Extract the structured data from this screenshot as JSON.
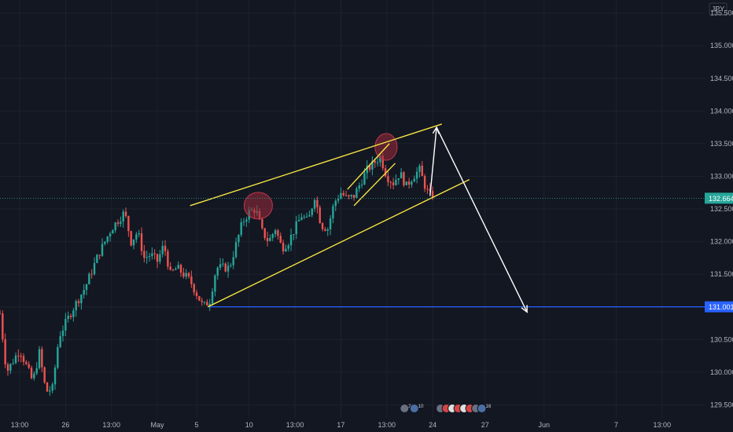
{
  "chart_data": {
    "type": "candlestick",
    "currency": "JPY",
    "ylim": [
      129.3,
      135.7
    ],
    "y_ticks": [
      "135.500",
      "135.000",
      "134.500",
      "134.000",
      "133.500",
      "133.000",
      "132.500",
      "132.000",
      "131.500",
      "131.000",
      "130.500",
      "130.000",
      "129.500"
    ],
    "x_ticks": [
      {
        "label": "13:00",
        "t": 3
      },
      {
        "label": "26",
        "t": 10
      },
      {
        "label": "13:00",
        "t": 17
      },
      {
        "label": "May",
        "t": 24
      },
      {
        "label": "5",
        "t": 30
      },
      {
        "label": "10",
        "t": 38
      },
      {
        "label": "13:00",
        "t": 45
      },
      {
        "label": "17",
        "t": 52
      },
      {
        "label": "13:00",
        "t": 59
      },
      {
        "label": "24",
        "t": 66
      },
      {
        "label": "27",
        "t": 74
      },
      {
        "label": "Jun",
        "t": 83
      },
      {
        "label": "7",
        "t": 94
      },
      {
        "label": "13:00",
        "t": 101
      }
    ],
    "t_range": [
      0,
      107.5
    ],
    "anchors": [
      [
        0,
        130.9
      ],
      [
        1,
        130.0
      ],
      [
        3,
        130.35
      ],
      [
        5,
        129.85
      ],
      [
        6,
        130.3
      ],
      [
        7,
        129.7
      ],
      [
        8,
        129.75
      ],
      [
        9,
        130.55
      ],
      [
        11,
        130.95
      ],
      [
        13,
        131.3
      ],
      [
        15,
        131.8
      ],
      [
        17,
        132.2
      ],
      [
        19,
        132.45
      ],
      [
        20,
        132.0
      ],
      [
        21,
        132.15
      ],
      [
        22,
        131.75
      ],
      [
        23,
        131.8
      ],
      [
        24,
        131.7
      ],
      [
        25,
        131.95
      ],
      [
        26,
        131.5
      ],
      [
        27,
        131.6
      ],
      [
        29,
        131.4
      ],
      [
        30,
        131.2
      ],
      [
        31,
        131.0
      ],
      [
        32,
        131.1
      ],
      [
        33,
        131.6
      ],
      [
        35,
        131.6
      ],
      [
        36,
        131.95
      ],
      [
        37,
        132.3
      ],
      [
        38,
        132.45
      ],
      [
        39,
        132.5
      ],
      [
        40,
        132.15
      ],
      [
        41,
        132.0
      ],
      [
        42,
        132.2
      ],
      [
        43,
        131.9
      ],
      [
        44,
        132.0
      ],
      [
        45,
        132.2
      ],
      [
        46,
        132.4
      ],
      [
        47,
        132.3
      ],
      [
        48,
        132.7
      ],
      [
        49,
        132.25
      ],
      [
        50,
        132.2
      ],
      [
        51,
        132.6
      ],
      [
        52,
        132.75
      ],
      [
        53,
        132.65
      ],
      [
        54,
        132.7
      ],
      [
        55,
        132.9
      ],
      [
        56,
        133.1
      ],
      [
        57,
        133.2
      ],
      [
        58,
        133.3
      ],
      [
        59,
        133.0
      ],
      [
        60,
        132.9
      ],
      [
        61,
        133.05
      ],
      [
        62,
        132.85
      ],
      [
        63,
        133.0
      ],
      [
        64,
        133.1
      ],
      [
        65,
        132.8
      ],
      [
        66,
        132.65
      ]
    ],
    "last_price": "132.664",
    "last_price_value": 132.664,
    "target_level": "131.001",
    "target_level_value": 131.001,
    "annotations": {
      "upper_channel": {
        "from": [
          29,
          132.55
        ],
        "to": [
          67.4,
          133.8
        ]
      },
      "lower_channel": {
        "from": [
          31.7,
          131.0
        ],
        "to": [
          71.6,
          132.95
        ]
      },
      "small_upper": {
        "from": [
          53,
          132.8
        ],
        "to": [
          59.4,
          133.5
        ]
      },
      "small_lower": {
        "from": [
          54,
          132.55
        ],
        "to": [
          60.3,
          133.2
        ]
      },
      "target_line": {
        "from": [
          31.7,
          131.001
        ],
        "to": [
          107.5,
          131.001
        ]
      },
      "projection_up": {
        "from": [
          65.6,
          132.7
        ],
        "to": [
          66.6,
          133.75
        ]
      },
      "projection_down": {
        "from": [
          66.6,
          133.75
        ],
        "to": [
          80.4,
          130.92
        ]
      },
      "highlight_1": {
        "center": [
          39.4,
          132.55
        ]
      },
      "highlight_2": {
        "center": [
          58.9,
          133.45
        ]
      }
    },
    "colors": {
      "background": "#131722",
      "up": "#26a69a",
      "down": "#ef5350",
      "channel": "#f5e642",
      "arrow": "#ffffff",
      "target": "#2962ff",
      "last_price_badge": "#26a69a",
      "highlight": "#9c2a3a",
      "axis_text": "#b2b5be",
      "grid": "#1e222d"
    },
    "event_icons_row_1": [
      "20",
      "10"
    ],
    "event_icons_row_2": [
      "46",
      "5",
      "2",
      "5",
      "16"
    ]
  }
}
